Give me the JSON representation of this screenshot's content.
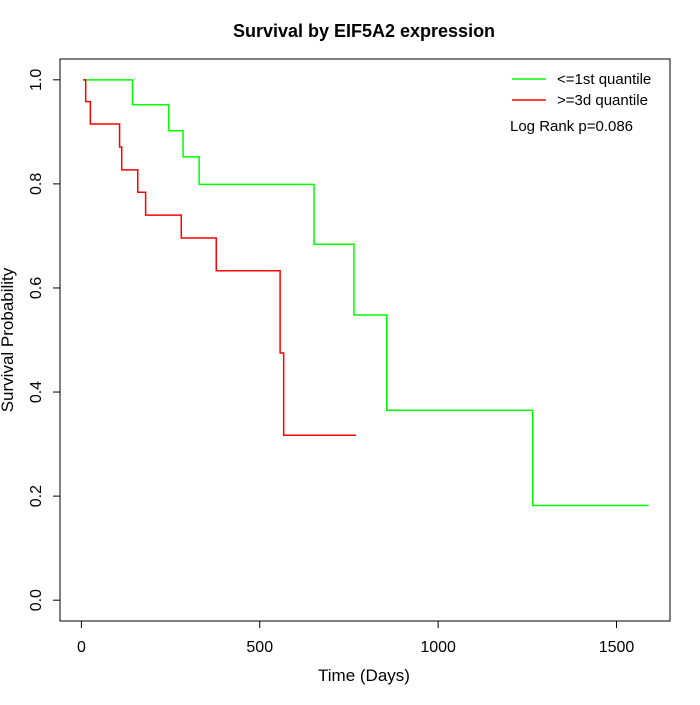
{
  "chart_data": {
    "type": "line",
    "subtype": "kaplan-meier step curve",
    "title": "Survival by EIF5A2 expression",
    "xlabel": "Time (Days)",
    "ylabel": "Survival Probability",
    "xlim": [
      -60,
      1650
    ],
    "ylim": [
      -0.04,
      1.04
    ],
    "xticks": [
      0,
      500,
      1000,
      1500
    ],
    "yticks": [
      0.0,
      0.2,
      0.4,
      0.6,
      0.8,
      1.0
    ],
    "xtick_labels": [
      "0",
      "500",
      "1000",
      "1500"
    ],
    "ytick_labels": [
      "0.0",
      "0.2",
      "0.4",
      "0.6",
      "0.8",
      "1.0"
    ],
    "legend_position": "top-right",
    "annotation": "Log Rank p=0.086",
    "series": [
      {
        "name": "<=1st quantile",
        "color": "#00ff00",
        "steps": [
          [
            5,
            1.0
          ],
          [
            143,
            0.952
          ],
          [
            245,
            0.902
          ],
          [
            285,
            0.852
          ],
          [
            330,
            0.799
          ],
          [
            652,
            0.684
          ],
          [
            764,
            0.548
          ],
          [
            856,
            0.365
          ],
          [
            1265,
            0.182
          ],
          [
            1590,
            0.182
          ]
        ]
      },
      {
        "name": ">=3d quantile",
        "color": "#ff0000",
        "steps": [
          [
            5,
            1.0
          ],
          [
            12,
            0.958
          ],
          [
            25,
            0.915
          ],
          [
            107,
            0.871
          ],
          [
            113,
            0.827
          ],
          [
            158,
            0.784
          ],
          [
            180,
            0.74
          ],
          [
            280,
            0.696
          ],
          [
            378,
            0.633
          ],
          [
            557,
            0.475
          ],
          [
            567,
            0.317
          ],
          [
            770,
            0.317
          ]
        ]
      }
    ]
  }
}
